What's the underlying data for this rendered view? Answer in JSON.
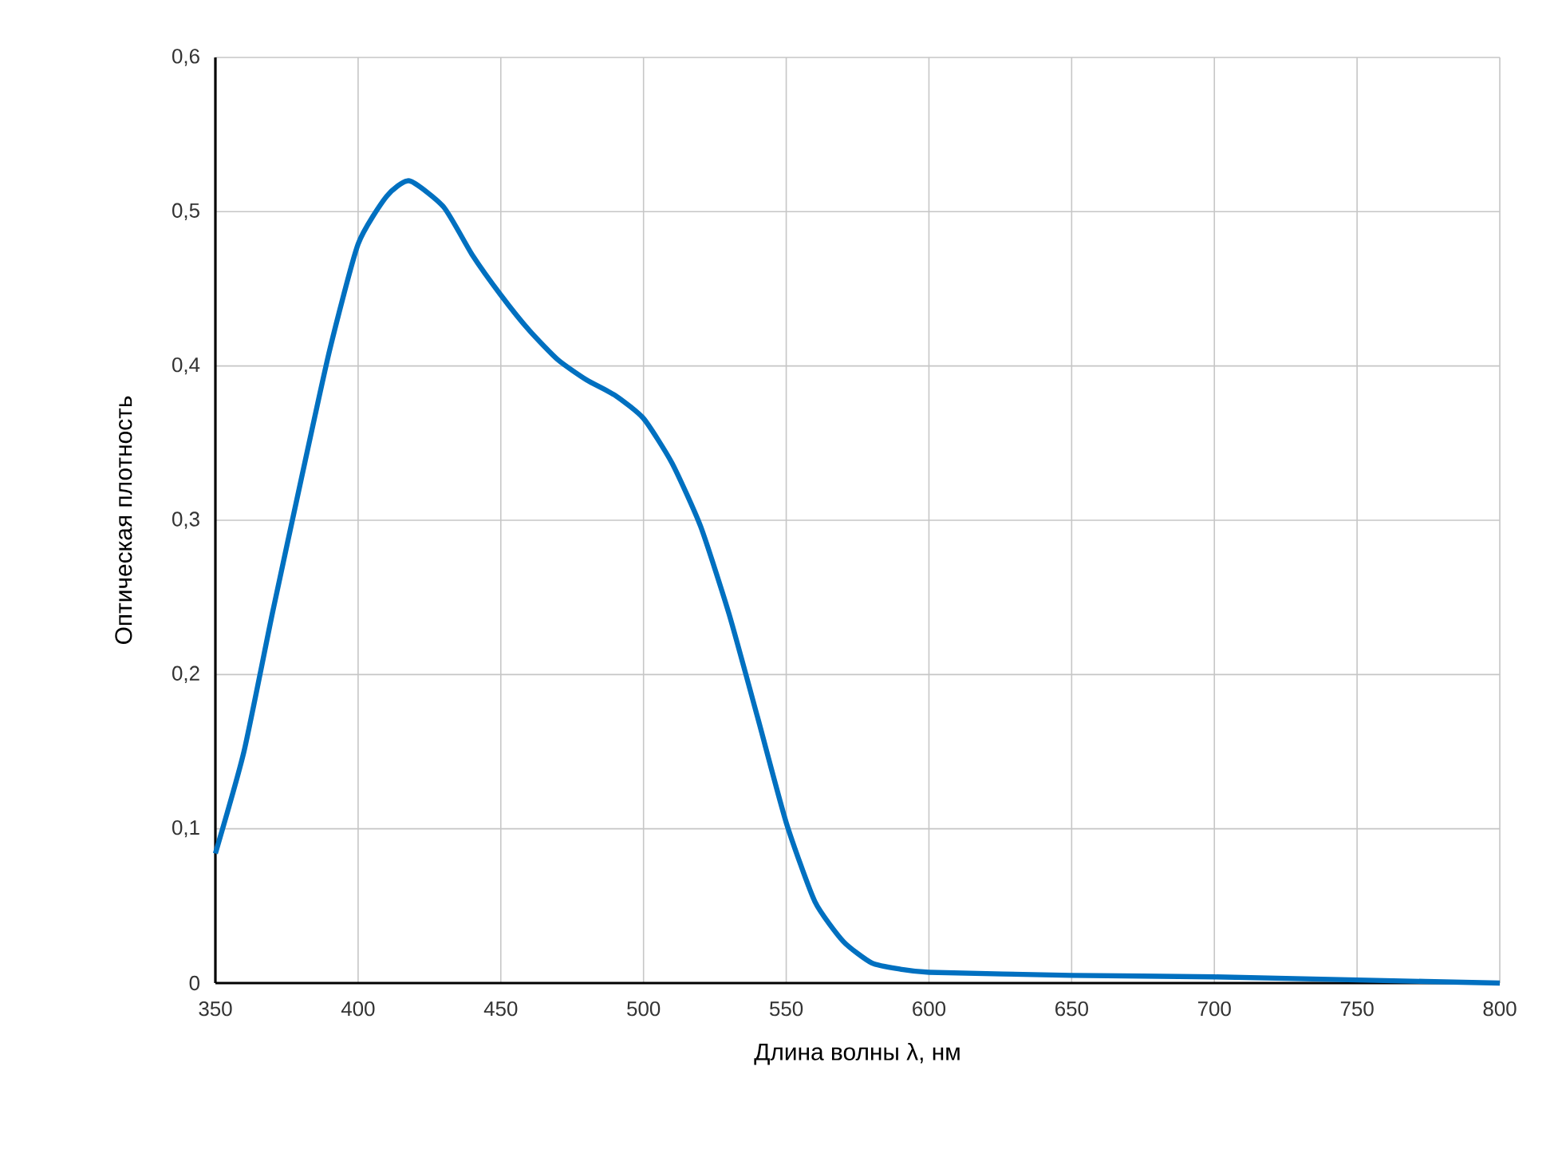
{
  "chart_data": {
    "type": "line",
    "xlabel": "Длина волны λ, нм",
    "ylabel": "Оптическая плотность",
    "xlim": [
      350,
      800
    ],
    "ylim": [
      0,
      0.6
    ],
    "xticks": [
      350,
      400,
      450,
      500,
      550,
      600,
      650,
      700,
      750,
      800
    ],
    "yticks": [
      {
        "value": 0,
        "label": "0"
      },
      {
        "value": 0.1,
        "label": "0,1"
      },
      {
        "value": 0.2,
        "label": "0,2"
      },
      {
        "value": 0.3,
        "label": "0,3"
      },
      {
        "value": 0.4,
        "label": "0,4"
      },
      {
        "value": 0.5,
        "label": "0,5"
      },
      {
        "value": 0.6,
        "label": "0,6"
      }
    ],
    "grid": true,
    "marker": "none",
    "line_style": "solid",
    "series": [
      {
        "color": "#0070c0",
        "x": [
          350,
          360,
          370,
          380,
          390,
          400,
          410,
          418,
          430,
          440,
          450,
          460,
          470,
          480,
          490,
          500,
          510,
          520,
          530,
          540,
          550,
          560,
          570,
          580,
          590,
          600,
          650,
          700,
          750,
          800
        ],
        "values": [
          0.084,
          0.15,
          0.24,
          0.326,
          0.41,
          0.479,
          0.51,
          0.52,
          0.503,
          0.472,
          0.446,
          0.423,
          0.404,
          0.391,
          0.381,
          0.366,
          0.337,
          0.296,
          0.239,
          0.172,
          0.104,
          0.053,
          0.027,
          0.013,
          0.009,
          0.007,
          0.005,
          0.004,
          0.002,
          0.0
        ]
      }
    ]
  }
}
